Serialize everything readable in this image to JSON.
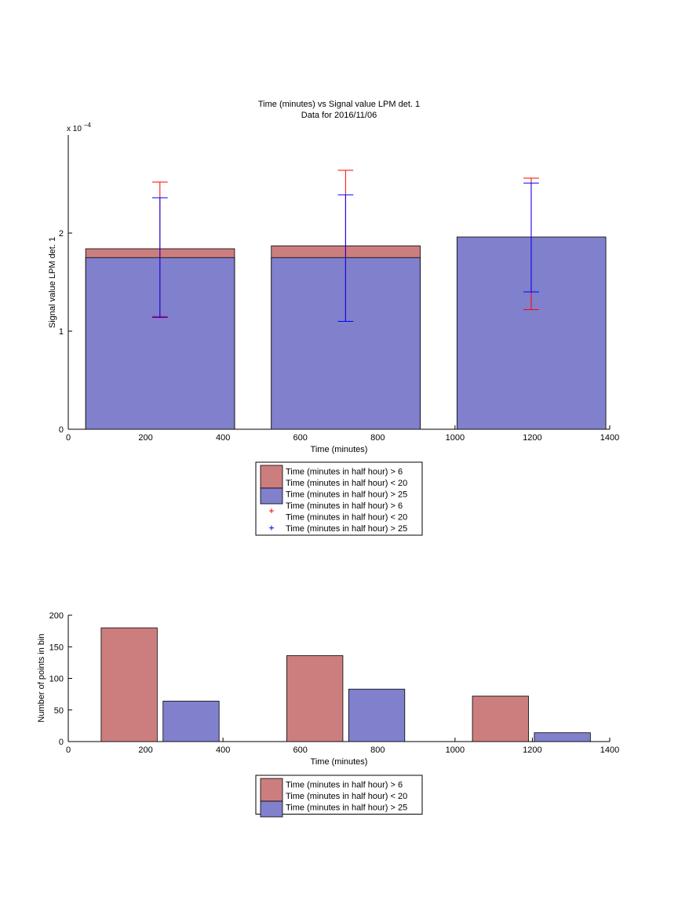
{
  "colors": {
    "red_bar": "#cc7e7e",
    "blue_bar": "#8080cc",
    "red_err": "#ff0000",
    "blue_err": "#0000ff"
  },
  "chart_data": [
    {
      "type": "bar",
      "title": "Time (minutes) vs Signal value LPM det. 1",
      "subtitle": "Data for 2016/11/06",
      "xlabel": "Time (minutes)",
      "ylabel": "Signal value LPM det. 1",
      "y_exponent": "x 10",
      "y_exponent_power": "−4",
      "xlim": [
        0,
        1400
      ],
      "ylim": [
        0,
        3
      ],
      "xticks": [
        "0",
        "200",
        "400",
        "600",
        "800",
        "1000",
        "1200",
        "1400"
      ],
      "yticks": [
        "0",
        "1",
        "2"
      ],
      "bars": [
        {
          "x0": 45,
          "x1": 430,
          "red_value": 1.84,
          "blue_value": 1.75
        },
        {
          "x0": 525,
          "x1": 910,
          "red_value": 1.87,
          "blue_value": 1.75
        },
        {
          "x0": 1005,
          "x1": 1390,
          "red_value": 0,
          "blue_value": 1.96
        }
      ],
      "errorbars": [
        {
          "series": "red",
          "x": 237,
          "low": 1.15,
          "high": 2.52
        },
        {
          "series": "blue",
          "x": 237,
          "low": 1.14,
          "high": 2.36
        },
        {
          "series": "red",
          "x": 717,
          "low": 1.1,
          "high": 2.64
        },
        {
          "series": "blue",
          "x": 717,
          "low": 1.1,
          "high": 2.39
        },
        {
          "series": "red",
          "x": 1197,
          "low": 1.22,
          "high": 2.56
        },
        {
          "series": "blue",
          "x": 1197,
          "low": 1.4,
          "high": 2.51
        }
      ],
      "error_cap_half_width": 20,
      "legend": {
        "placement": "below",
        "entries": [
          {
            "kind": "bar",
            "color": "red",
            "lines": [
              "Time (minutes in half hour) > 6",
              "Time (minutes in half hour) < 20"
            ]
          },
          {
            "kind": "bar",
            "color": "blue",
            "lines": [
              "Time (minutes in half hour) > 25"
            ]
          },
          {
            "kind": "marker",
            "color": "red",
            "lines": [
              "Time (minutes in half hour) > 6",
              "Time (minutes in half hour) < 20"
            ]
          },
          {
            "kind": "marker",
            "color": "blue",
            "lines": [
              "Time (minutes in half hour) > 25"
            ]
          }
        ]
      }
    },
    {
      "type": "bar",
      "xlabel": "Time (minutes)",
      "ylabel": "Number of points in bin",
      "xlim": [
        0,
        1400
      ],
      "ylim": [
        0,
        200
      ],
      "xticks": [
        "0",
        "200",
        "400",
        "600",
        "800",
        "1000",
        "1200",
        "1400"
      ],
      "yticks": [
        "0",
        "50",
        "100",
        "150",
        "200"
      ],
      "bars": [
        {
          "series": "red",
          "x0": 85,
          "x1": 230,
          "value": 180
        },
        {
          "series": "blue",
          "x0": 245,
          "x1": 390,
          "value": 64
        },
        {
          "series": "red",
          "x0": 565,
          "x1": 710,
          "value": 136
        },
        {
          "series": "blue",
          "x0": 725,
          "x1": 870,
          "value": 83
        },
        {
          "series": "red",
          "x0": 1045,
          "x1": 1190,
          "value": 72
        },
        {
          "series": "blue",
          "x0": 1205,
          "x1": 1350,
          "value": 14
        }
      ],
      "legend": {
        "placement": "below",
        "entries": [
          {
            "kind": "bar",
            "color": "red",
            "lines": [
              "Time (minutes in half hour) > 6",
              "Time (minutes in half hour) < 20"
            ]
          },
          {
            "kind": "bar",
            "color": "blue",
            "lines": [
              "Time (minutes in half hour) > 25"
            ]
          }
        ]
      }
    }
  ]
}
